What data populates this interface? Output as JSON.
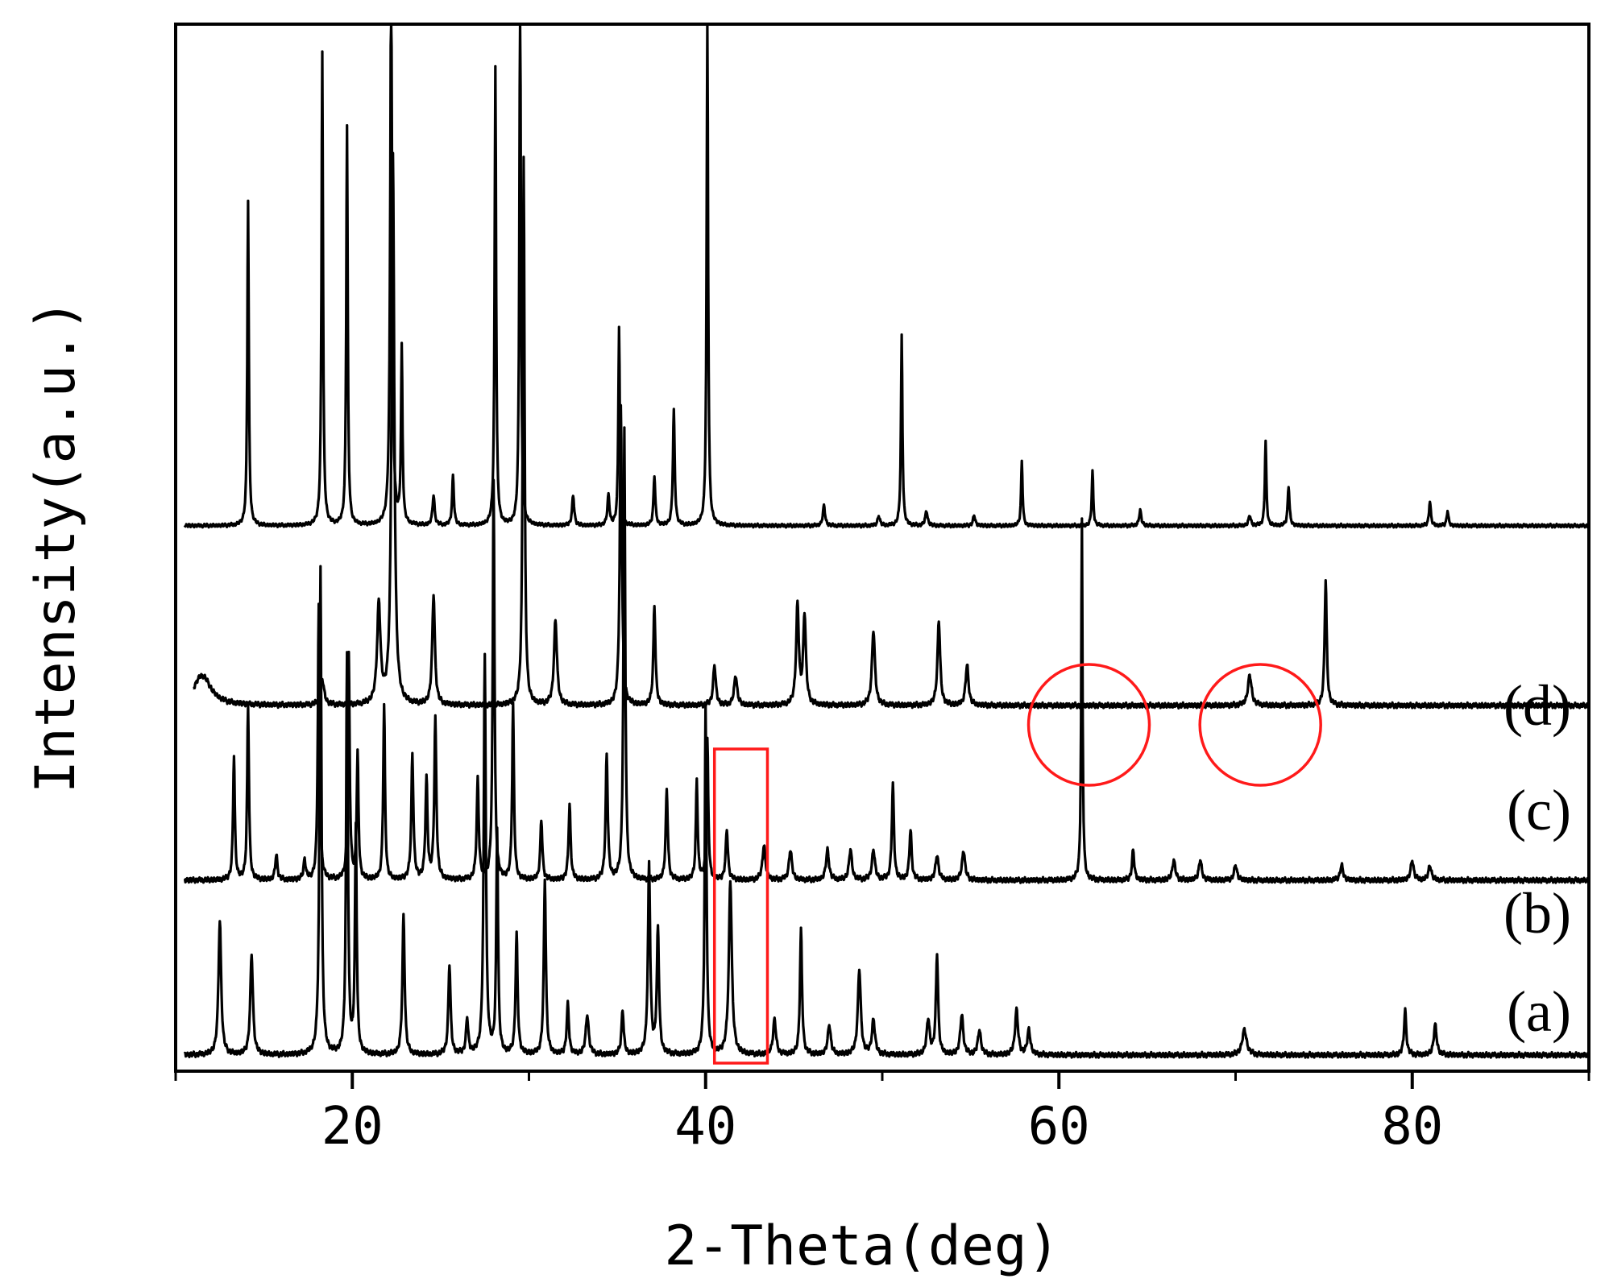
{
  "chart_data": {
    "type": "line",
    "title": "",
    "xlabel": "2-Theta(deg)",
    "ylabel": "Intensity(a.u.)",
    "xlim": [
      10,
      90
    ],
    "xticks": [
      20,
      40,
      60,
      80
    ],
    "yticks": "none",
    "grid": false,
    "legend": "none",
    "line_color": "#000000",
    "annotation_color": "#ff1a1a",
    "series": [
      {
        "name": "(a)",
        "baseline": 0.0,
        "noise": 0.006,
        "peaks": [
          [
            12.5,
            0.27,
            0.18
          ],
          [
            14.3,
            0.2,
            0.18
          ],
          [
            18.2,
            0.98,
            0.13
          ],
          [
            19.7,
            0.8,
            0.12
          ],
          [
            20.2,
            0.45,
            0.12
          ],
          [
            22.9,
            0.28,
            0.15
          ],
          [
            25.5,
            0.18,
            0.15
          ],
          [
            26.5,
            0.07,
            0.15
          ],
          [
            27.5,
            0.8,
            0.14
          ],
          [
            28.2,
            0.45,
            0.12
          ],
          [
            29.3,
            0.24,
            0.14
          ],
          [
            30.9,
            0.35,
            0.14
          ],
          [
            32.2,
            0.1,
            0.15
          ],
          [
            33.3,
            0.08,
            0.2
          ],
          [
            35.3,
            0.09,
            0.15
          ],
          [
            36.8,
            0.38,
            0.15
          ],
          [
            37.3,
            0.25,
            0.15
          ],
          [
            40.0,
            0.7,
            0.12
          ],
          [
            41.4,
            0.35,
            0.2
          ],
          [
            43.9,
            0.07,
            0.2
          ],
          [
            45.4,
            0.25,
            0.14
          ],
          [
            47.0,
            0.06,
            0.2
          ],
          [
            48.7,
            0.17,
            0.2
          ],
          [
            49.5,
            0.07,
            0.2
          ],
          [
            52.6,
            0.07,
            0.2
          ],
          [
            53.1,
            0.2,
            0.15
          ],
          [
            54.5,
            0.08,
            0.2
          ],
          [
            55.5,
            0.05,
            0.2
          ],
          [
            57.6,
            0.09,
            0.2
          ],
          [
            58.3,
            0.05,
            0.2
          ],
          [
            70.5,
            0.05,
            0.3
          ],
          [
            79.6,
            0.09,
            0.15
          ],
          [
            81.3,
            0.06,
            0.2
          ]
        ]
      },
      {
        "name": "(b)",
        "baseline": 0.35,
        "noise": 0.006,
        "peaks": [
          [
            13.3,
            0.25,
            0.12
          ],
          [
            14.1,
            0.35,
            0.12
          ],
          [
            15.7,
            0.05,
            0.15
          ],
          [
            17.3,
            0.04,
            0.15
          ],
          [
            18.1,
            0.55,
            0.12
          ],
          [
            19.8,
            0.45,
            0.12
          ],
          [
            20.3,
            0.25,
            0.12
          ],
          [
            21.8,
            0.35,
            0.12
          ],
          [
            23.4,
            0.25,
            0.14
          ],
          [
            24.2,
            0.2,
            0.14
          ],
          [
            24.7,
            0.32,
            0.14
          ],
          [
            27.1,
            0.2,
            0.14
          ],
          [
            28.0,
            0.8,
            0.12
          ],
          [
            29.1,
            0.35,
            0.12
          ],
          [
            30.7,
            0.12,
            0.14
          ],
          [
            32.3,
            0.15,
            0.14
          ],
          [
            34.4,
            0.25,
            0.14
          ],
          [
            35.4,
            0.9,
            0.12
          ],
          [
            37.8,
            0.18,
            0.14
          ],
          [
            39.5,
            0.2,
            0.12
          ],
          [
            40.1,
            0.28,
            0.12
          ],
          [
            41.2,
            0.1,
            0.15
          ],
          [
            43.3,
            0.07,
            0.2
          ],
          [
            44.8,
            0.06,
            0.2
          ],
          [
            46.9,
            0.06,
            0.2
          ],
          [
            48.2,
            0.06,
            0.2
          ],
          [
            49.5,
            0.06,
            0.2
          ],
          [
            50.6,
            0.19,
            0.14
          ],
          [
            51.6,
            0.1,
            0.15
          ],
          [
            53.1,
            0.05,
            0.2
          ],
          [
            54.6,
            0.06,
            0.2
          ],
          [
            61.3,
            0.72,
            0.09
          ],
          [
            64.2,
            0.06,
            0.15
          ],
          [
            66.5,
            0.04,
            0.2
          ],
          [
            68.0,
            0.04,
            0.2
          ],
          [
            70.0,
            0.03,
            0.2
          ],
          [
            76.0,
            0.03,
            0.2
          ],
          [
            80.0,
            0.04,
            0.2
          ],
          [
            81.0,
            0.03,
            0.2
          ]
        ]
      },
      {
        "name": "(c)",
        "baseline": 0.7,
        "noise": 0.006,
        "peaks": [
          [
            11.5,
            0.06,
            1.2
          ],
          [
            18.3,
            0.05,
            0.25
          ],
          [
            21.5,
            0.2,
            0.22
          ],
          [
            22.3,
            1.1,
            0.18
          ],
          [
            24.6,
            0.22,
            0.18
          ],
          [
            29.7,
            1.1,
            0.12
          ],
          [
            31.5,
            0.17,
            0.2
          ],
          [
            35.2,
            0.6,
            0.14
          ],
          [
            37.1,
            0.2,
            0.14
          ],
          [
            40.5,
            0.08,
            0.18
          ],
          [
            41.7,
            0.06,
            0.2
          ],
          [
            45.2,
            0.2,
            0.18
          ],
          [
            45.6,
            0.18,
            0.18
          ],
          [
            49.5,
            0.15,
            0.2
          ],
          [
            53.2,
            0.17,
            0.18
          ],
          [
            54.8,
            0.08,
            0.2
          ],
          [
            70.8,
            0.06,
            0.25
          ],
          [
            75.1,
            0.25,
            0.14
          ]
        ]
      },
      {
        "name": "(d)",
        "baseline": 1.06,
        "noise": 0.004,
        "peaks": [
          [
            14.1,
            0.65,
            0.1
          ],
          [
            18.3,
            0.95,
            0.1
          ],
          [
            19.7,
            0.8,
            0.1
          ],
          [
            22.2,
            1.1,
            0.13
          ],
          [
            22.8,
            0.35,
            0.1
          ],
          [
            24.6,
            0.06,
            0.14
          ],
          [
            25.7,
            0.1,
            0.12
          ],
          [
            28.1,
            0.92,
            0.1
          ],
          [
            29.5,
            1.1,
            0.1
          ],
          [
            32.5,
            0.06,
            0.14
          ],
          [
            34.5,
            0.06,
            0.14
          ],
          [
            35.1,
            0.4,
            0.1
          ],
          [
            37.1,
            0.1,
            0.12
          ],
          [
            38.2,
            0.23,
            0.12
          ],
          [
            40.1,
            1.01,
            0.1
          ],
          [
            46.7,
            0.04,
            0.15
          ],
          [
            49.8,
            0.02,
            0.15
          ],
          [
            51.1,
            0.38,
            0.1
          ],
          [
            52.5,
            0.03,
            0.15
          ],
          [
            55.2,
            0.02,
            0.15
          ],
          [
            57.9,
            0.13,
            0.1
          ],
          [
            61.9,
            0.11,
            0.1
          ],
          [
            64.6,
            0.03,
            0.15
          ],
          [
            70.8,
            0.02,
            0.15
          ],
          [
            71.7,
            0.17,
            0.1
          ],
          [
            73.0,
            0.08,
            0.12
          ],
          [
            81.0,
            0.05,
            0.12
          ],
          [
            82.0,
            0.03,
            0.12
          ]
        ]
      }
    ],
    "series_labels": [
      "(d)",
      "(c)",
      "(b)",
      "(a)"
    ],
    "annotations": [
      {
        "shape": "rectangle",
        "x_range": [
          40.5,
          43.5
        ]
      },
      {
        "shape": "circle",
        "x_center": 61.7
      },
      {
        "shape": "circle",
        "x_center": 71.4
      }
    ]
  }
}
